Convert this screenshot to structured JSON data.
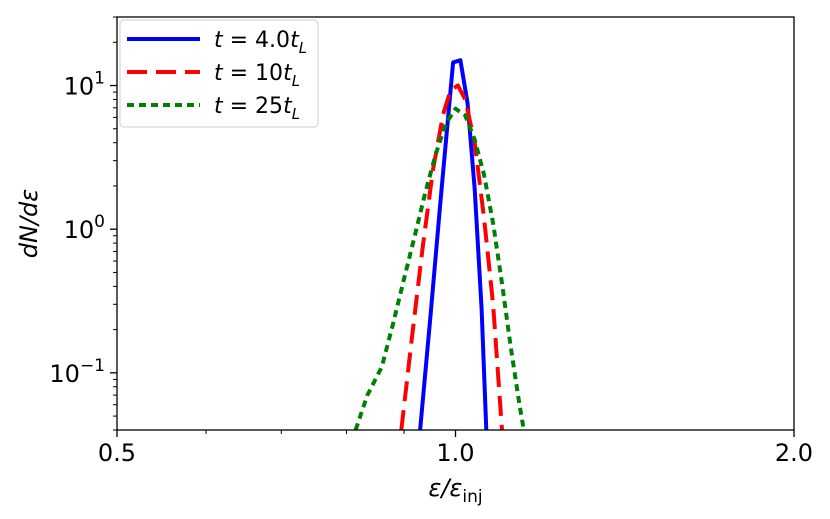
{
  "chart_data": {
    "type": "line",
    "xlabel": "ε/ε",
    "xlabel_sub": "inj",
    "ylabel": "dN/dε",
    "xscale": "log",
    "yscale": "log",
    "xlim": [
      0.5,
      2.0
    ],
    "ylim": [
      0.04,
      30
    ],
    "x_tick_labels": [
      {
        "value": 0.5,
        "label": "0.5"
      },
      {
        "value": 1.0,
        "label": "1.0"
      },
      {
        "value": 2.0,
        "label": "2.0"
      }
    ],
    "y_tick_labels": [
      {
        "value": 0.1,
        "base": "10",
        "exp": "−1"
      },
      {
        "value": 1,
        "base": "10",
        "exp": "0"
      },
      {
        "value": 10,
        "base": "10",
        "exp": "1"
      }
    ],
    "legend_position": "upper-left",
    "grid": false,
    "series": [
      {
        "name": "t = 4.0t_L",
        "label_parts": {
          "pre": "t",
          "eq": " = ",
          "num": "4.0",
          "var": "t",
          "sub": "L"
        },
        "color": "#0000ff",
        "style": "solid",
        "points": [
          [
            0.93,
            0.04
          ],
          [
            0.95,
            0.25
          ],
          [
            0.97,
            1.6
          ],
          [
            0.985,
            6.0
          ],
          [
            0.995,
            14.5
          ],
          [
            1.01,
            15.0
          ],
          [
            1.025,
            7.5
          ],
          [
            1.04,
            1.9
          ],
          [
            1.055,
            0.28
          ],
          [
            1.065,
            0.04
          ]
        ]
      },
      {
        "name": "t = 10t_L",
        "label_parts": {
          "pre": "t",
          "eq": " = ",
          "num": "10",
          "var": "t",
          "sub": "L"
        },
        "color": "#ff0000",
        "style": "dashed",
        "points": [
          [
            0.895,
            0.04
          ],
          [
            0.915,
            0.18
          ],
          [
            0.935,
            0.75
          ],
          [
            0.955,
            2.6
          ],
          [
            0.975,
            6.3
          ],
          [
            0.99,
            9.3
          ],
          [
            1.005,
            10.0
          ],
          [
            1.02,
            8.0
          ],
          [
            1.04,
            4.0
          ],
          [
            1.06,
            1.2
          ],
          [
            1.08,
            0.3
          ],
          [
            1.1,
            0.04
          ]
        ]
      },
      {
        "name": "t = 25t_L",
        "label_parts": {
          "pre": "t",
          "eq": " = ",
          "num": "25",
          "var": "t",
          "sub": "L"
        },
        "color": "#008000",
        "style": "dotted",
        "points": [
          [
            0.815,
            0.04
          ],
          [
            0.835,
            0.07
          ],
          [
            0.86,
            0.11
          ],
          [
            0.88,
            0.22
          ],
          [
            0.9,
            0.45
          ],
          [
            0.92,
            0.9
          ],
          [
            0.94,
            1.8
          ],
          [
            0.96,
            3.3
          ],
          [
            0.98,
            5.4
          ],
          [
            1.0,
            6.9
          ],
          [
            1.02,
            6.2
          ],
          [
            1.04,
            4.2
          ],
          [
            1.06,
            2.4
          ],
          [
            1.08,
            1.1
          ],
          [
            1.1,
            0.42
          ],
          [
            1.12,
            0.15
          ],
          [
            1.14,
            0.06
          ],
          [
            1.15,
            0.04
          ]
        ]
      }
    ]
  }
}
